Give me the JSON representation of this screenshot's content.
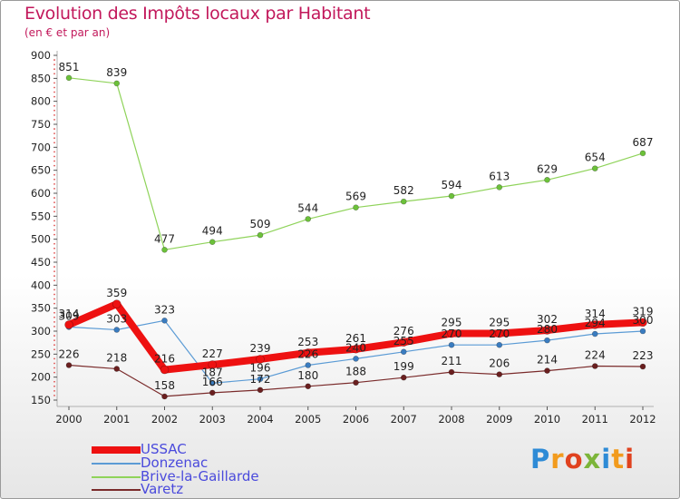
{
  "title": "Evolution des Impôts locaux par Habitant",
  "subtitle": "(en € et par an)",
  "logo": {
    "text": "Proxiti",
    "letters": [
      "P",
      "r",
      "o",
      "x",
      "i",
      "t",
      "i"
    ],
    "colors": [
      "#2e8bd6",
      "#f29b1d",
      "#e0421f",
      "#7cb53a",
      "#2e8bd6",
      "#f29b1d",
      "#e0421f"
    ]
  },
  "chart_data": {
    "type": "line",
    "title": "Evolution des Impôts locaux par Habitant",
    "subtitle": "(en € et par an)",
    "xlabel": "",
    "ylabel": "",
    "ylim": [
      150,
      900
    ],
    "yticks": [
      150,
      200,
      250,
      300,
      350,
      400,
      450,
      500,
      550,
      600,
      650,
      700,
      750,
      800,
      850,
      900
    ],
    "categories": [
      "2000",
      "2001",
      "2002",
      "2003",
      "2004",
      "2005",
      "2006",
      "2007",
      "2008",
      "2009",
      "2010",
      "2011",
      "2012"
    ],
    "series": [
      {
        "name": "Brive-la-Gaillarde",
        "color": "#8fd35a",
        "marker": "#6cc13a",
        "width": 1.2,
        "values": [
          851,
          839,
          477,
          494,
          509,
          544,
          569,
          582,
          594,
          613,
          629,
          654,
          687
        ]
      },
      {
        "name": "Donzenac",
        "color": "#5b9bd5",
        "marker": "#3a7cc0",
        "width": 1.2,
        "values": [
          309,
          303,
          323,
          187,
          196,
          226,
          240,
          255,
          270,
          270,
          280,
          294,
          300
        ]
      },
      {
        "name": "Varetz",
        "color": "#7a2b2b",
        "marker": "#6a1f1f",
        "width": 1.2,
        "values": [
          226,
          218,
          158,
          166,
          172,
          180,
          188,
          199,
          211,
          206,
          214,
          224,
          223
        ]
      },
      {
        "name": "USSAC",
        "color": "#ee1111",
        "marker": "#ee1111",
        "width": 8,
        "values": [
          314,
          359,
          216,
          227,
          239,
          253,
          261,
          276,
          295,
          295,
          302,
          314,
          319
        ]
      }
    ],
    "data_labels": {
      "Brive-la-Gaillarde": [
        "851",
        "839",
        "477",
        "494",
        "509",
        "544",
        "569",
        "582",
        "594",
        "613",
        "629",
        "654",
        "687"
      ],
      "Donzenac": [
        "309",
        "303",
        "323",
        "187",
        "196",
        "226",
        "240",
        "255",
        "270",
        "270",
        "280",
        "294",
        "300"
      ],
      "Varetz": [
        "226",
        "218",
        "158",
        "166",
        "172",
        "180",
        "188",
        "199",
        "211",
        "206",
        "214",
        "224",
        "223"
      ],
      "USSAC": [
        "314",
        "359",
        "216",
        "227",
        "239",
        "253",
        "261",
        "276",
        "295",
        "295",
        "302",
        "314",
        "319"
      ]
    },
    "legend": [
      {
        "name": "USSAC",
        "color": "#ee1111",
        "thickness": 8
      },
      {
        "name": "Donzenac",
        "color": "#5b9bd5",
        "thickness": 2
      },
      {
        "name": "Brive-la-Gaillarde",
        "color": "#8fd35a",
        "thickness": 2
      },
      {
        "name": "Varetz",
        "color": "#7a2b2b",
        "thickness": 2
      }
    ],
    "legend_position": "bottom-left",
    "grid": false
  }
}
